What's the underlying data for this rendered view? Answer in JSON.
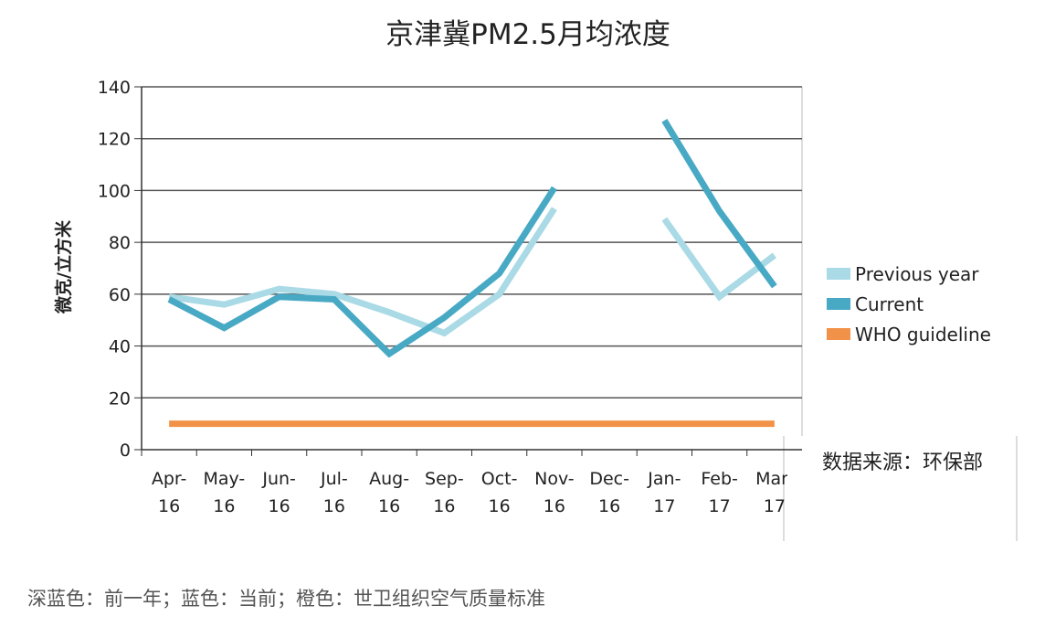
{
  "chart_data": {
    "type": "line",
    "title": "京津冀PM2.5月均浓度",
    "y_label": "微克/立方米",
    "source": "数据来源：环保部",
    "caption": "深蓝色：前一年；蓝色：当前；橙色：世卫组织空气质量标准",
    "categories": [
      "Apr-16",
      "May-16",
      "Jun-16",
      "Jul-16",
      "Aug-16",
      "Sep-16",
      "Oct-16",
      "Nov-16",
      "Dec-16",
      "Jan-17",
      "Feb-17",
      "Mar-17"
    ],
    "series": [
      {
        "name": "Previous year",
        "color": "#a9dae6",
        "values": [
          59,
          56,
          62,
          60,
          53,
          45,
          60,
          93,
          null,
          89,
          59,
          75
        ]
      },
      {
        "name": "Current",
        "color": "#48a9c5",
        "values": [
          58,
          47,
          59,
          58,
          37,
          51,
          68,
          101,
          null,
          127,
          92,
          63
        ]
      },
      {
        "name": "WHO guideline",
        "color": "#f29248",
        "values": [
          10,
          10,
          10,
          10,
          10,
          10,
          10,
          10,
          10,
          10,
          10,
          10
        ]
      }
    ],
    "ylim": [
      0,
      140
    ],
    "yticks": [
      0,
      20,
      40,
      60,
      80,
      100,
      120,
      140
    ],
    "grid": true
  }
}
